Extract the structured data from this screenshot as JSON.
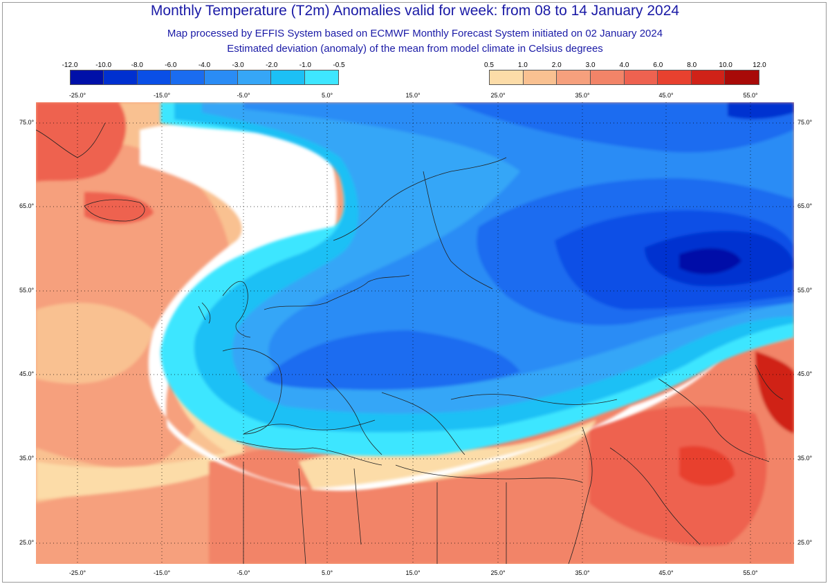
{
  "title": "Monthly Temperature (T2m) Anomalies valid for week: from 08 to 14 January 2024",
  "subtitle1": "Map processed by EFFIS System based on ECMWF Monthly Forecast System initiated on 02 January 2024",
  "subtitle2": "Estimated deviation (anomaly) of the mean from model climate in Celsius degrees",
  "legend_negative": {
    "labels": [
      "-12.0",
      "-10.0",
      "-8.0",
      "-6.0",
      "-4.0",
      "-3.0",
      "-2.0",
      "-1.0",
      "-0.5"
    ],
    "colors": [
      "#0010a8",
      "#0030d0",
      "#0a4fe6",
      "#1a6cf0",
      "#2a8cf5",
      "#36a6f7",
      "#1cc0f5",
      "#3ee6ff"
    ]
  },
  "legend_positive": {
    "labels": [
      "0.5",
      "1.0",
      "2.0",
      "3.0",
      "4.0",
      "6.0",
      "8.0",
      "10.0",
      "12.0"
    ],
    "colors": [
      "#fcdca8",
      "#f9c191",
      "#f6a07d",
      "#f28468",
      "#ee6250",
      "#e8412f",
      "#d02218",
      "#a80a08"
    ]
  },
  "longitude_labels": [
    "-25.0°",
    "-15.0°",
    "-5.0°",
    "5.0°",
    "15.0°",
    "25.0°",
    "35.0°",
    "45.0°",
    "55.0°"
  ],
  "latitude_labels": [
    "75.0°",
    "65.0°",
    "55.0°",
    "45.0°",
    "35.0°",
    "25.0°"
  ],
  "map_colors": {
    "neutral": "#ffffff",
    "border": "#222222",
    "grid": "#000000"
  }
}
